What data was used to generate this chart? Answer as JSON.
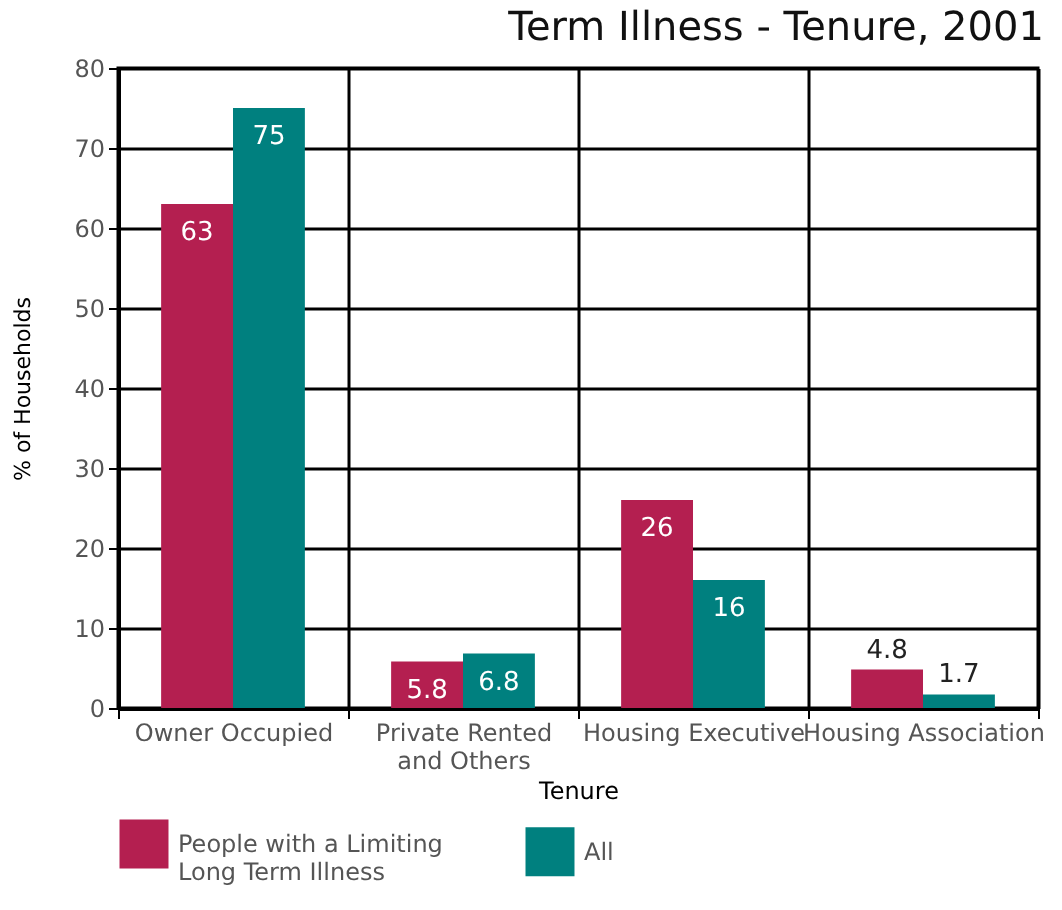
{
  "chart_data": {
    "type": "bar",
    "title": "Term Illness - Tenure, 2001",
    "xlabel": "Tenure",
    "ylabel": "% of Households",
    "categories": [
      "Owner Occupied",
      "Private Rented and Others",
      "Housing Executive",
      "Housing Association"
    ],
    "series": [
      {
        "name": "People with a Limiting Long Term Illness",
        "color": "#b41f50",
        "values": [
          63,
          5.8,
          26,
          4.8
        ]
      },
      {
        "name": "All",
        "color": "#00807f",
        "values": [
          75,
          6.8,
          16,
          1.7
        ]
      }
    ],
    "ylim": [
      0,
      80
    ],
    "yticks": [
      0,
      10,
      20,
      30,
      40,
      50,
      60,
      70,
      80
    ],
    "grid": true,
    "legend": "bottom",
    "data_labels": true
  }
}
